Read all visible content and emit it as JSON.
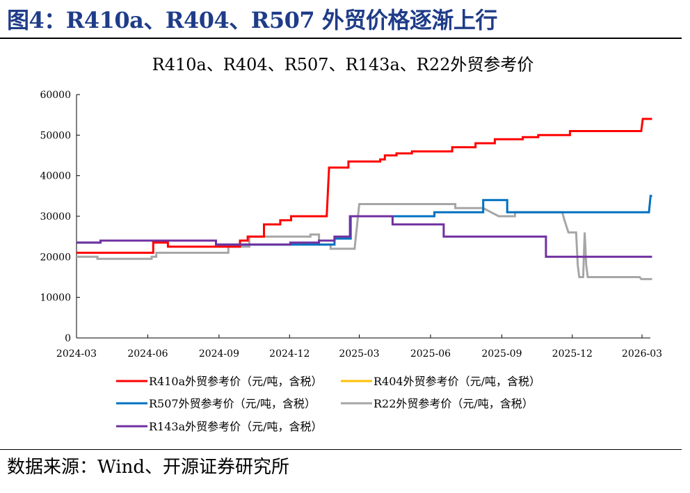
{
  "figure_title": "图4：R410a、R404、R507 外贸价格逐渐上行",
  "source": "数据来源：Wind、开源证券研究所",
  "chart_data": {
    "type": "line",
    "title": "R410a、R404、R507、R143a、R22外贸参考价",
    "x_ticks": [
      "2024-03",
      "2024-06",
      "2024-09",
      "2024-12",
      "2025-03",
      "2025-06",
      "2025-09",
      "2025-12",
      "2026-03"
    ],
    "x_range": [
      "2024-03-01",
      "2026-03-01"
    ],
    "ylim": [
      0,
      60000
    ],
    "y_ticks": [
      0,
      10000,
      20000,
      30000,
      40000,
      50000,
      60000
    ],
    "grid": false,
    "legend_position": "bottom",
    "series": [
      {
        "name": "R410a外贸参考价（元/吨，含税）",
        "color": "#ff0000",
        "points": [
          [
            "2024-03-01",
            21000
          ],
          [
            "2024-06-08",
            21000
          ],
          [
            "2024-06-08",
            23500
          ],
          [
            "2024-06-27",
            23500
          ],
          [
            "2024-06-27",
            22500
          ],
          [
            "2024-09-01",
            22500
          ],
          [
            "2024-09-01",
            22500
          ],
          [
            "2024-09-28",
            22500
          ],
          [
            "2024-09-28",
            24000
          ],
          [
            "2024-10-08",
            24000
          ],
          [
            "2024-10-08",
            25000
          ],
          [
            "2024-10-29",
            25000
          ],
          [
            "2024-10-29",
            28000
          ],
          [
            "2024-11-19",
            28000
          ],
          [
            "2024-11-19",
            29000
          ],
          [
            "2024-12-03",
            29000
          ],
          [
            "2024-12-03",
            30000
          ],
          [
            "2025-01-18",
            30000
          ],
          [
            "2025-01-21",
            42000
          ],
          [
            "2025-02-15",
            42000
          ],
          [
            "2025-02-15",
            43500
          ],
          [
            "2025-03-28",
            43500
          ],
          [
            "2025-03-28",
            44000
          ],
          [
            "2025-04-03",
            44000
          ],
          [
            "2025-04-03",
            45000
          ],
          [
            "2025-04-18",
            45000
          ],
          [
            "2025-04-18",
            45500
          ],
          [
            "2025-05-08",
            45500
          ],
          [
            "2025-05-08",
            46000
          ],
          [
            "2025-06-29",
            46000
          ],
          [
            "2025-06-29",
            47000
          ],
          [
            "2025-07-29",
            47000
          ],
          [
            "2025-07-29",
            48000
          ],
          [
            "2025-08-23",
            48000
          ],
          [
            "2025-08-23",
            49000
          ],
          [
            "2025-09-28",
            49000
          ],
          [
            "2025-09-28",
            49500
          ],
          [
            "2025-10-18",
            49500
          ],
          [
            "2025-10-18",
            50000
          ],
          [
            "2025-11-28",
            50000
          ],
          [
            "2025-11-28",
            51000
          ],
          [
            "2026-02-28",
            51000
          ],
          [
            "2026-03-02",
            54000
          ],
          [
            "2026-03-14",
            54000
          ]
        ]
      },
      {
        "name": "R404外贸参考价（元/吨，含税）",
        "color": "#ffc000",
        "points": []
      },
      {
        "name": "R507外贸参考价（元/吨，含税）",
        "color": "#0070c0",
        "points": [
          [
            "2024-03-01",
            23500
          ],
          [
            "2024-04-01",
            23500
          ],
          [
            "2024-04-01",
            24000
          ],
          [
            "2024-08-28",
            24000
          ],
          [
            "2024-08-28",
            23000
          ],
          [
            "2025-01-28",
            23000
          ],
          [
            "2025-01-28",
            24500
          ],
          [
            "2025-02-18",
            24500
          ],
          [
            "2025-02-18",
            30000
          ],
          [
            "2025-06-06",
            30000
          ],
          [
            "2025-06-06",
            31000
          ],
          [
            "2025-08-08",
            31000
          ],
          [
            "2025-08-08",
            34000
          ],
          [
            "2025-09-08",
            34000
          ],
          [
            "2025-09-08",
            31000
          ],
          [
            "2026-03-10",
            31000
          ],
          [
            "2026-03-12",
            35000
          ],
          [
            "2026-03-14",
            35000
          ]
        ]
      },
      {
        "name": "R22外贸参考价（元/吨，含税）",
        "color": "#a6a6a6",
        "points": [
          [
            "2024-03-01",
            20000
          ],
          [
            "2024-03-28",
            20000
          ],
          [
            "2024-03-28",
            19500
          ],
          [
            "2024-06-06",
            19500
          ],
          [
            "2024-06-06",
            20000
          ],
          [
            "2024-06-12",
            20000
          ],
          [
            "2024-06-12",
            21000
          ],
          [
            "2024-09-13",
            21000
          ],
          [
            "2024-09-13",
            22500
          ],
          [
            "2024-10-10",
            22500
          ],
          [
            "2024-10-10",
            25000
          ],
          [
            "2024-12-28",
            25000
          ],
          [
            "2024-12-28",
            25500
          ],
          [
            "2025-01-08",
            25500
          ],
          [
            "2025-01-08",
            23000
          ],
          [
            "2025-01-23",
            23000
          ],
          [
            "2025-01-23",
            22000
          ],
          [
            "2025-02-23",
            22000
          ],
          [
            "2025-03-01",
            33000
          ],
          [
            "2025-07-03",
            33000
          ],
          [
            "2025-07-03",
            32000
          ],
          [
            "2025-08-08",
            32000
          ],
          [
            "2025-08-18",
            31000
          ],
          [
            "2025-08-28",
            30000
          ],
          [
            "2025-09-18",
            30000
          ],
          [
            "2025-09-18",
            31000
          ],
          [
            "2025-11-18",
            31000
          ],
          [
            "2025-11-21",
            29000
          ],
          [
            "2025-11-26",
            26000
          ],
          [
            "2025-12-06",
            26000
          ],
          [
            "2025-12-08",
            18000
          ],
          [
            "2025-12-10",
            15000
          ],
          [
            "2025-12-15",
            15000
          ],
          [
            "2025-12-17",
            26000
          ],
          [
            "2025-12-19",
            18000
          ],
          [
            "2025-12-21",
            15000
          ],
          [
            "2026-02-26",
            15000
          ],
          [
            "2026-02-28",
            14500
          ],
          [
            "2026-03-14",
            14500
          ]
        ]
      },
      {
        "name": "R143a外贸参考价（元/吨，含税）",
        "color": "#7030a0",
        "points": [
          [
            "2024-03-01",
            23500
          ],
          [
            "2024-04-01",
            23500
          ],
          [
            "2024-04-01",
            24000
          ],
          [
            "2024-08-28",
            24000
          ],
          [
            "2024-08-28",
            23000
          ],
          [
            "2024-12-02",
            23000
          ],
          [
            "2024-12-02",
            23500
          ],
          [
            "2025-01-08",
            23500
          ],
          [
            "2025-01-08",
            24000
          ],
          [
            "2025-01-28",
            24000
          ],
          [
            "2025-01-28",
            25000
          ],
          [
            "2025-02-17",
            25000
          ],
          [
            "2025-02-17",
            30000
          ],
          [
            "2025-04-13",
            30000
          ],
          [
            "2025-04-13",
            28000
          ],
          [
            "2025-06-18",
            28000
          ],
          [
            "2025-06-18",
            25000
          ],
          [
            "2025-10-28",
            25000
          ],
          [
            "2025-10-28",
            20000
          ],
          [
            "2026-03-14",
            20000
          ]
        ]
      }
    ]
  }
}
